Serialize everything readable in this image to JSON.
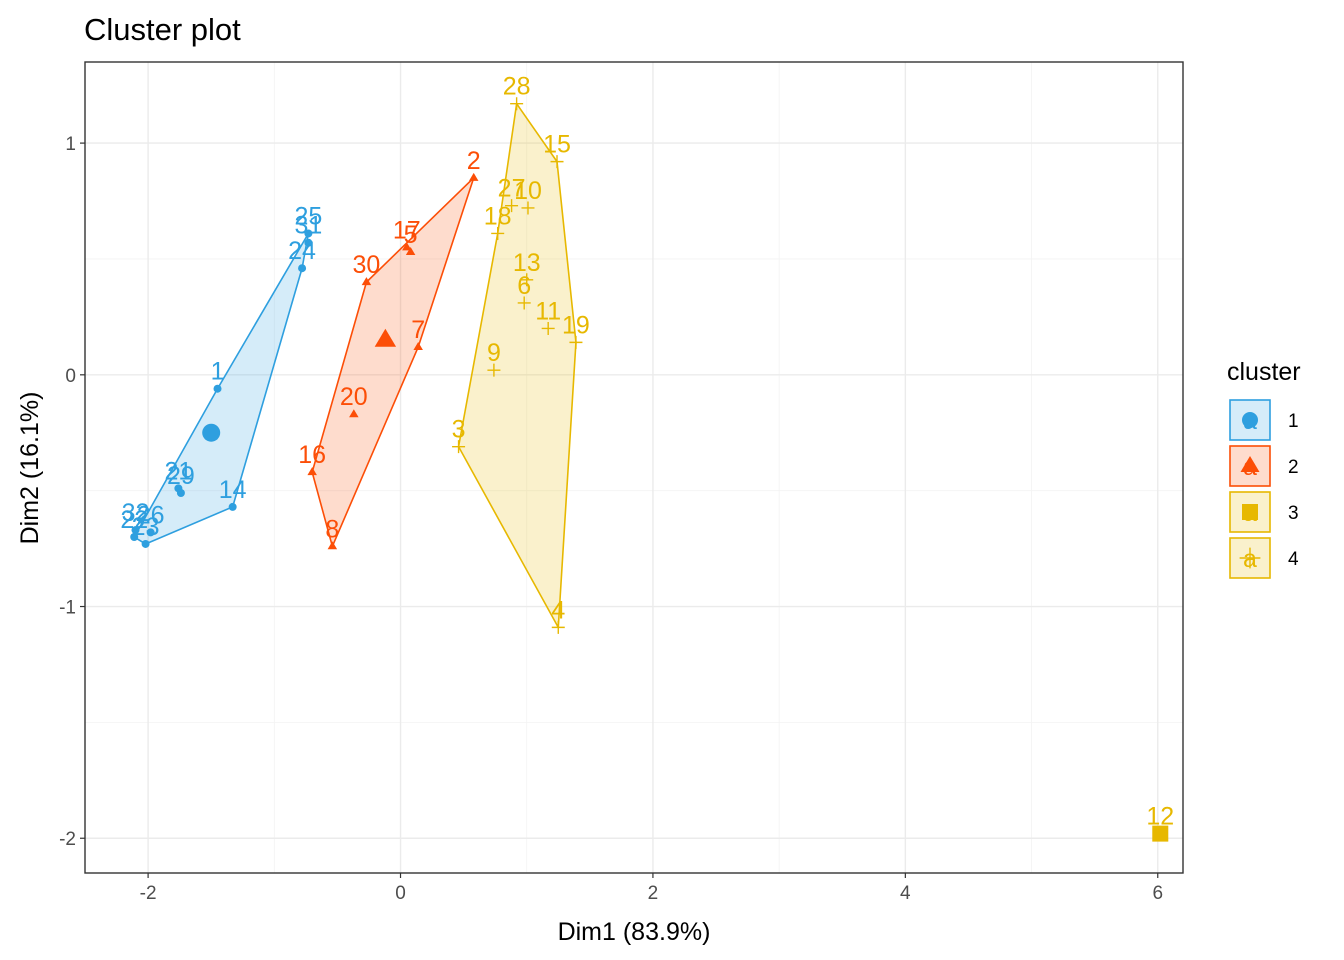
{
  "chart_data": {
    "type": "scatter",
    "title": "Cluster plot",
    "xlabel": "Dim1 (83.9%)",
    "ylabel": "Dim2 (16.1%)",
    "xlim": [
      -2.5,
      6.2
    ],
    "ylim": [
      -2.15,
      1.35
    ],
    "x_ticks": [
      -2,
      0,
      2,
      4,
      6
    ],
    "y_ticks": [
      -2,
      -1,
      0,
      1
    ],
    "x_tick_labels": [
      "-2",
      "0",
      "2",
      "4",
      "6"
    ],
    "y_tick_labels": [
      "-2",
      "-1",
      "0",
      "1"
    ],
    "grid": true,
    "legend": {
      "title": "cluster",
      "position": "right",
      "entries": [
        {
          "label": "1",
          "key_text": "a",
          "shape": "circle"
        },
        {
          "label": "2",
          "key_text": "a",
          "shape": "triangle"
        },
        {
          "label": "3",
          "key_text": "a",
          "shape": "square"
        },
        {
          "label": "4",
          "key_text": "a",
          "shape": "cross"
        }
      ]
    },
    "clusters": [
      {
        "name": "1",
        "color": "#2E9FDF",
        "shape": "circle",
        "hull": [
          "1",
          "25",
          "24",
          "14",
          "23",
          "22"
        ],
        "center": {
          "x": -1.5,
          "y": -0.25
        },
        "points": [
          {
            "id": "1",
            "x": -1.45,
            "y": -0.06
          },
          {
            "id": "25",
            "x": -0.73,
            "y": 0.61
          },
          {
            "id": "31",
            "x": -0.73,
            "y": 0.57
          },
          {
            "id": "24",
            "x": -0.78,
            "y": 0.46
          },
          {
            "id": "21",
            "x": -1.76,
            "y": -0.49
          },
          {
            "id": "29",
            "x": -1.74,
            "y": -0.51
          },
          {
            "id": "14",
            "x": -1.33,
            "y": -0.57
          },
          {
            "id": "32",
            "x": -2.1,
            "y": -0.67
          },
          {
            "id": "26",
            "x": -1.98,
            "y": -0.68
          },
          {
            "id": "22",
            "x": -2.11,
            "y": -0.7
          },
          {
            "id": "23",
            "x": -2.02,
            "y": -0.73
          }
        ]
      },
      {
        "name": "2",
        "color": "#FC4E07",
        "shape": "triangle",
        "hull": [
          "2",
          "30",
          "16",
          "8",
          "7"
        ],
        "center": {
          "x": -0.12,
          "y": 0.15
        },
        "points": [
          {
            "id": "2",
            "x": 0.58,
            "y": 0.85
          },
          {
            "id": "17",
            "x": 0.05,
            "y": 0.55
          },
          {
            "id": "5",
            "x": 0.08,
            "y": 0.53
          },
          {
            "id": "30",
            "x": -0.27,
            "y": 0.4
          },
          {
            "id": "7",
            "x": 0.14,
            "y": 0.12
          },
          {
            "id": "20",
            "x": -0.37,
            "y": -0.17
          },
          {
            "id": "16",
            "x": -0.7,
            "y": -0.42
          },
          {
            "id": "8",
            "x": -0.54,
            "y": -0.74
          }
        ]
      },
      {
        "name": "3",
        "color": "#E7B800",
        "shape": "square",
        "hull": [],
        "center": null,
        "points": [
          {
            "id": "12",
            "x": 6.02,
            "y": -1.98
          }
        ]
      },
      {
        "name": "4",
        "color": "#E7B800",
        "shape": "cross",
        "hull": [
          "28",
          "15",
          "19",
          "4",
          "3",
          "18"
        ],
        "center": null,
        "points": [
          {
            "id": "28",
            "x": 0.92,
            "y": 1.17
          },
          {
            "id": "15",
            "x": 1.24,
            "y": 0.92
          },
          {
            "id": "27",
            "x": 0.88,
            "y": 0.73
          },
          {
            "id": "10",
            "x": 1.01,
            "y": 0.72
          },
          {
            "id": "18",
            "x": 0.77,
            "y": 0.61
          },
          {
            "id": "13",
            "x": 1.0,
            "y": 0.41
          },
          {
            "id": "6",
            "x": 0.98,
            "y": 0.31
          },
          {
            "id": "11",
            "x": 1.17,
            "y": 0.2
          },
          {
            "id": "19",
            "x": 1.39,
            "y": 0.14
          },
          {
            "id": "9",
            "x": 0.74,
            "y": 0.02
          },
          {
            "id": "3",
            "x": 0.46,
            "y": -0.31
          },
          {
            "id": "4",
            "x": 1.25,
            "y": -1.09
          }
        ]
      }
    ]
  }
}
